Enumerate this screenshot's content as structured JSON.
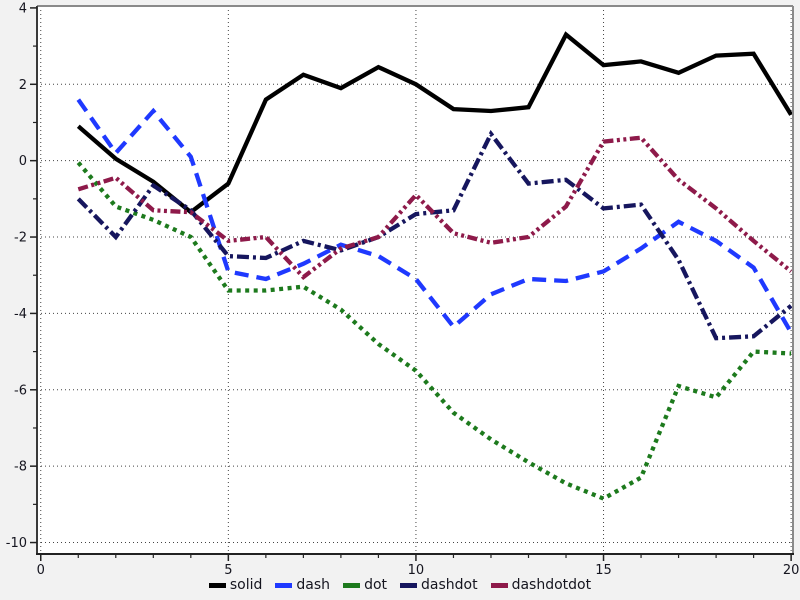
{
  "chart_data": {
    "type": "line",
    "title": "",
    "xlabel": "",
    "ylabel": "",
    "grid": true,
    "legend_position": "bottom-center",
    "background": "#f2f2f2",
    "plot_background": "#ffffff",
    "grid_color": "#444444",
    "spine_dark_color": "#222222",
    "spine_light_color": "#8a8a8a",
    "tick_label_color": "#15151f",
    "xlim": [
      -0.1,
      20.05
    ],
    "ylim": [
      -10.3,
      4.05
    ],
    "xticks": [
      0,
      5,
      10,
      15,
      20
    ],
    "yticks": [
      4,
      2,
      0,
      -2,
      -4,
      -6,
      -8,
      -10
    ],
    "x_minor_ticks": [
      1,
      2,
      3,
      4,
      6,
      7,
      8,
      9,
      11,
      12,
      13,
      14,
      16,
      17,
      18,
      19
    ],
    "y_minor_ticks": [
      3,
      1,
      -1,
      -3,
      -5,
      -7,
      -9
    ],
    "x": [
      1,
      2,
      3,
      4,
      5,
      6,
      7,
      8,
      9,
      10,
      11,
      12,
      13,
      14,
      15,
      16,
      17,
      18,
      19,
      20
    ],
    "series": [
      {
        "name": "solid",
        "color": "#000000",
        "linestyle": "solid",
        "values": [
          0.9,
          0.05,
          -0.55,
          -1.35,
          -0.6,
          1.6,
          2.25,
          1.9,
          2.45,
          2.0,
          1.35,
          1.3,
          1.4,
          3.3,
          2.5,
          2.6,
          2.3,
          2.75,
          2.8,
          1.2
        ]
      },
      {
        "name": "dash",
        "color": "#1f39ff",
        "linestyle": "dash",
        "values": [
          1.6,
          0.2,
          1.3,
          0.1,
          -2.9,
          -3.1,
          -2.7,
          -2.2,
          -2.5,
          -3.1,
          -4.35,
          -3.5,
          -3.1,
          -3.15,
          -2.9,
          -2.3,
          -1.6,
          -2.1,
          -2.8,
          -4.5
        ]
      },
      {
        "name": "dot",
        "color": "#1d7a1d",
        "linestyle": "dot",
        "values": [
          -0.05,
          -1.2,
          -1.55,
          -2.0,
          -3.4,
          -3.4,
          -3.3,
          -3.9,
          -4.8,
          -5.5,
          -6.6,
          -7.3,
          -7.9,
          -8.45,
          -8.85,
          -8.3,
          -5.9,
          -6.2,
          -5.0,
          -5.05
        ]
      },
      {
        "name": "dashdot",
        "color": "#16165e",
        "linestyle": "dashdot",
        "values": [
          -1.0,
          -2.0,
          -0.65,
          -1.3,
          -2.5,
          -2.55,
          -2.1,
          -2.35,
          -2.0,
          -1.4,
          -1.3,
          0.7,
          -0.6,
          -0.5,
          -1.25,
          -1.15,
          -2.6,
          -4.65,
          -4.6,
          -3.8
        ]
      },
      {
        "name": "dashdotdot",
        "color": "#8e1a4a",
        "linestyle": "dashdotdot",
        "values": [
          -0.75,
          -0.45,
          -1.3,
          -1.35,
          -2.1,
          -2.0,
          -3.05,
          -2.3,
          -2.0,
          -0.9,
          -1.9,
          -2.15,
          -2.0,
          -1.2,
          0.5,
          0.6,
          -0.5,
          -1.25,
          -2.1,
          -2.9
        ]
      }
    ]
  }
}
